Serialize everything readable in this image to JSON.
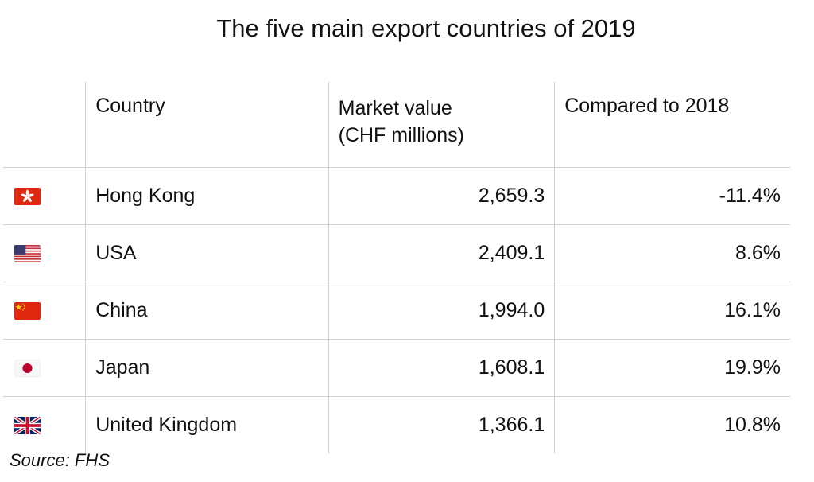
{
  "chart_data": {
    "type": "table",
    "title": "The five main export countries of 2019",
    "columns": [
      "",
      "Country",
      "Market value (CHF millions)",
      "Compared to 2018"
    ],
    "header": {
      "country": "Country",
      "value_line1": "Market value",
      "value_line2": "(CHF millions)",
      "change": "Compared to 2018"
    },
    "rows": [
      {
        "flag": "hong-kong-flag-icon",
        "country": "Hong Kong",
        "value": "2,659.3",
        "change": "-11.4%"
      },
      {
        "flag": "usa-flag-icon",
        "country": "USA",
        "value": "2,409.1",
        "change": "8.6%"
      },
      {
        "flag": "china-flag-icon",
        "country": "China",
        "value": "1,994.0",
        "change": "16.1%"
      },
      {
        "flag": "japan-flag-icon",
        "country": "Japan",
        "value": "1,608.1",
        "change": "19.9%"
      },
      {
        "flag": "uk-flag-icon",
        "country": "United Kingdom",
        "value": "1,366.1",
        "change": "10.8%"
      }
    ],
    "source": "Source: FHS"
  }
}
